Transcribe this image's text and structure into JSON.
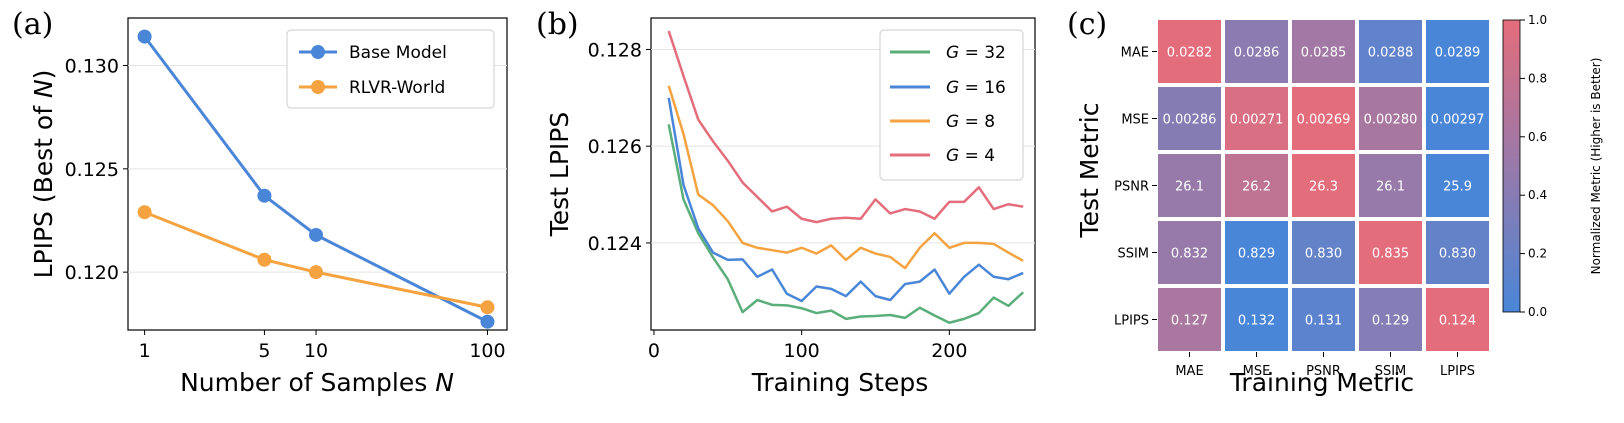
{
  "chart_data": [
    {
      "type": "line",
      "panel_label": "(a)",
      "xlabel": "Number of Samples N",
      "ylabel": "LPIPS (Best of N)",
      "xscale": "log",
      "xticks": [
        "1",
        "5",
        "10",
        "100"
      ],
      "yticks": [
        "0.120",
        "0.125",
        "0.130"
      ],
      "xlim": [
        0.8,
        130
      ],
      "ylim": [
        0.1172,
        0.1323
      ],
      "grid": "horizontal",
      "legend": "top-right",
      "x": [
        1,
        5,
        10,
        100
      ],
      "series": [
        {
          "name": "Base Model",
          "color": "#4a86d8",
          "values": [
            0.1314,
            0.1237,
            0.1218,
            0.1176
          ]
        },
        {
          "name": "RLVR-World",
          "color": "#f4a340",
          "values": [
            0.1229,
            0.1206,
            0.12,
            0.1183
          ]
        }
      ]
    },
    {
      "type": "line",
      "panel_label": "(b)",
      "xlabel": "Training Steps",
      "ylabel": "Test LPIPS",
      "xticks": [
        "0",
        "100",
        "200"
      ],
      "yticks": [
        "0.124",
        "0.126",
        "0.128"
      ],
      "xlim": [
        -2,
        258
      ],
      "ylim": [
        0.1222,
        0.12865
      ],
      "grid": "horizontal",
      "legend": "top-right",
      "x": [
        10,
        20,
        30,
        40,
        50,
        60,
        70,
        80,
        90,
        100,
        110,
        120,
        130,
        140,
        150,
        160,
        170,
        180,
        190,
        200,
        210,
        220,
        230,
        240,
        250
      ],
      "series": [
        {
          "name": "G=32",
          "color": "#5aae7a",
          "values": [
            0.12645,
            0.1249,
            0.1242,
            0.1237,
            0.12325,
            0.12257,
            0.12282,
            0.12272,
            0.12271,
            0.12265,
            0.12255,
            0.1226,
            0.12243,
            0.12248,
            0.12249,
            0.12251,
            0.12245,
            0.12266,
            0.1225,
            0.12235,
            0.12243,
            0.12255,
            0.12287,
            0.1227,
            0.12298
          ]
        },
        {
          "name": "G=16",
          "color": "#4a86d8",
          "values": [
            0.127,
            0.1252,
            0.1243,
            0.1238,
            0.12365,
            0.12366,
            0.1233,
            0.12345,
            0.12295,
            0.1228,
            0.1231,
            0.12305,
            0.1229,
            0.1232,
            0.1229,
            0.12282,
            0.12315,
            0.1232,
            0.12345,
            0.12295,
            0.1233,
            0.12355,
            0.1233,
            0.12325,
            0.12338
          ]
        },
        {
          "name": "G=8",
          "color": "#f4a340",
          "values": [
            0.12725,
            0.12625,
            0.125,
            0.12478,
            0.12445,
            0.124,
            0.1239,
            0.12385,
            0.1238,
            0.1239,
            0.12378,
            0.12395,
            0.12365,
            0.1239,
            0.12378,
            0.12371,
            0.12348,
            0.1239,
            0.1242,
            0.1239,
            0.124,
            0.124,
            0.12398,
            0.1238,
            0.12363
          ]
        },
        {
          "name": "G=4",
          "color": "#e46d7c",
          "values": [
            0.12838,
            0.12745,
            0.12655,
            0.1261,
            0.1257,
            0.12525,
            0.12495,
            0.12465,
            0.12475,
            0.1245,
            0.12443,
            0.1245,
            0.12452,
            0.1245,
            0.1249,
            0.12461,
            0.1247,
            0.12465,
            0.1245,
            0.12485,
            0.12485,
            0.12515,
            0.1247,
            0.1248,
            0.12475
          ]
        }
      ]
    },
    {
      "type": "heatmap",
      "panel_label": "(c)",
      "xlabel": "Training Metric",
      "ylabel": "Test Metric",
      "colorbar_label": "Normalized Metric (Higher is Better)",
      "colorbar_ticks": [
        "0.0",
        "0.2",
        "0.4",
        "0.6",
        "0.8",
        "1.0"
      ],
      "colormap": [
        "#4a86d8",
        "#e46d7c"
      ],
      "columns": [
        "MAE",
        "MSE",
        "PSNR",
        "SSIM",
        "LPIPS"
      ],
      "rows": [
        "MAE",
        "MSE",
        "PSNR",
        "SSIM",
        "LPIPS"
      ],
      "cells": [
        [
          "0.0282",
          "0.0286",
          "0.0285",
          "0.0288",
          "0.0289"
        ],
        [
          "0.00286",
          "0.00271",
          "0.00269",
          "0.00280",
          "0.00297"
        ],
        [
          "26.1",
          "26.2",
          "26.3",
          "26.1",
          "25.9"
        ],
        [
          "0.832",
          "0.829",
          "0.830",
          "0.835",
          "0.830"
        ],
        [
          "0.127",
          "0.132",
          "0.131",
          "0.129",
          "0.124"
        ]
      ],
      "normalized": [
        [
          1.0,
          0.43,
          0.57,
          0.14,
          0.0
        ],
        [
          0.39,
          0.93,
          1.0,
          0.61,
          0.0
        ],
        [
          0.5,
          0.75,
          1.0,
          0.5,
          0.0
        ],
        [
          0.5,
          0.0,
          0.17,
          1.0,
          0.17
        ],
        [
          0.62,
          0.0,
          0.12,
          0.38,
          1.0
        ]
      ]
    }
  ]
}
